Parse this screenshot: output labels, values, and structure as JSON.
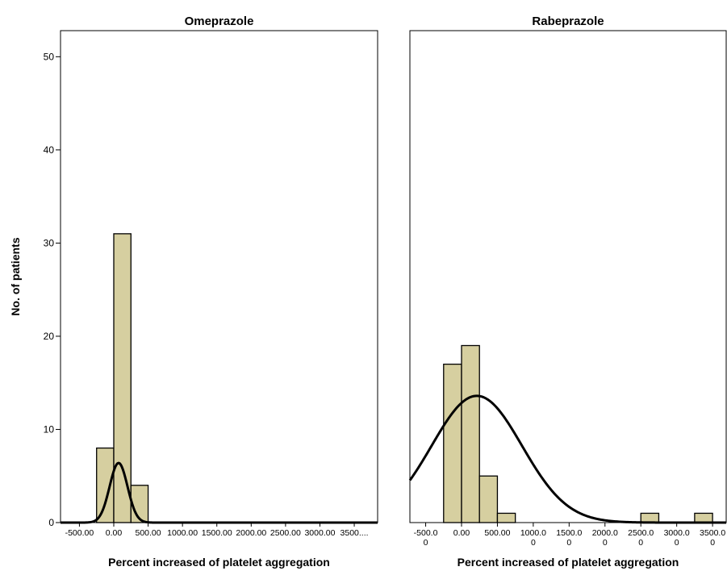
{
  "chart_data": [
    {
      "type": "histogram",
      "title": "Omeprazole",
      "xlabel": "Percent increased of platelet aggregation",
      "ylabel": "No. of patients",
      "bins": [
        -250,
        0,
        250,
        500
      ],
      "counts": [
        8,
        31,
        4
      ],
      "color": "#d6cfa0",
      "curve": {
        "mean": 70,
        "sd": 130,
        "peak": 6.4
      },
      "xlim": [
        -775,
        3840
      ],
      "ylim": [
        0,
        52.8
      ],
      "xticks": [
        {
          "value": -500,
          "label": "-500.00"
        },
        {
          "value": 0,
          "label": "0.00"
        },
        {
          "value": 500,
          "label": "500.00"
        },
        {
          "value": 1000,
          "label": "1000.00"
        },
        {
          "value": 1500,
          "label": "1500.00"
        },
        {
          "value": 2000,
          "label": "2000.00"
        },
        {
          "value": 2500,
          "label": "2500.00"
        },
        {
          "value": 3000,
          "label": "3000.00"
        },
        {
          "value": 3500,
          "label": "3500...."
        }
      ],
      "yticks": [
        0,
        10,
        20,
        30,
        40,
        50
      ]
    },
    {
      "type": "histogram",
      "title": "Rabeprazole",
      "xlabel": "Percent increased of platelet aggregation",
      "bins": [
        -250,
        0,
        250,
        500,
        750,
        1000,
        1250,
        1500,
        1750,
        2000,
        2250,
        2500,
        2750,
        3000,
        3250,
        3500
      ],
      "counts": [
        17,
        19,
        5,
        1,
        0,
        0,
        0,
        0,
        0,
        0,
        0,
        1,
        0,
        0,
        1
      ],
      "color": "#d6cfa0",
      "curve": {
        "mean": 213,
        "sd": 630,
        "peak": 13.6
      },
      "xlim": [
        -720,
        3690
      ],
      "ylim": [
        0,
        52.8
      ],
      "xticks": [
        {
          "value": -500,
          "label": "-500.00"
        },
        {
          "value": 0,
          "label": "0.00"
        },
        {
          "value": 500,
          "label": "500.00"
        },
        {
          "value": 1000,
          "label": "1000.00"
        },
        {
          "value": 1500,
          "label": "1500.00"
        },
        {
          "value": 2000,
          "label": "2000.00"
        },
        {
          "value": 2500,
          "label": "2500.00"
        },
        {
          "value": 3000,
          "label": "3000.00"
        },
        {
          "value": 3500,
          "label": "3500.00"
        }
      ]
    }
  ]
}
